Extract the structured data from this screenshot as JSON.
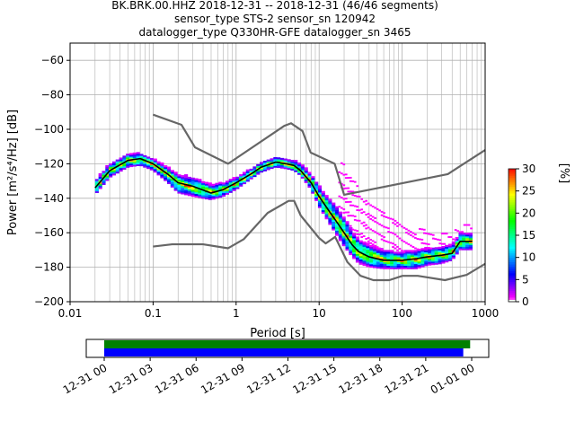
{
  "title_lines": [
    "BK.BRK.00.HHZ   2018-12-31 -- 2018-12-31  (46/46 segments)",
    "sensor_type STS-2 sensor_sn 120942",
    "datalogger_type Q330HR-GFE datalogger_sn 3465"
  ],
  "colorbar": {
    "label": "[%]",
    "ticks": [
      "0",
      "5",
      "10",
      "15",
      "20",
      "25",
      "30"
    ],
    "range": [
      0,
      30
    ],
    "colormap": "pqlx"
  },
  "timeline": {
    "tick_labels": [
      "12-31 00",
      "12-31 03",
      "12-31 06",
      "12-31 09",
      "12-31 12",
      "12-31 15",
      "12-31 18",
      "12-31 21",
      "01-01 00"
    ],
    "bars": [
      {
        "color": "#008000",
        "start_hour": 0.0,
        "end_hour": 23.9
      },
      {
        "color": "#0000ff",
        "start_hour": 0.0,
        "end_hour": 23.45
      }
    ]
  },
  "chart_data": {
    "type": "heatmap",
    "xlabel": "Period [s]",
    "ylabel": "Power [m²/s⁴/Hz] [dB]",
    "xscale": "log",
    "xlim": [
      0.01,
      1000
    ],
    "ylim": [
      -200,
      -50
    ],
    "grid": true,
    "x_tick_labels": [
      "0.01",
      "0.1",
      "1",
      "10",
      "100",
      "1000"
    ],
    "y_tick_labels": [
      "−200",
      "−180",
      "−160",
      "−140",
      "−120",
      "−100",
      "−80",
      "−60"
    ],
    "series": [
      {
        "role": "noise-model-upper",
        "color": "#666666",
        "x": [
          0.1,
          0.22,
          0.32,
          0.8,
          3.8,
          4.6,
          6.3,
          7.9,
          15.4,
          20,
          354.8,
          1000
        ],
        "y": [
          -91.5,
          -97.4,
          -110.5,
          -120,
          -98,
          -96.5,
          -101,
          -113.5,
          -120,
          -138,
          -126,
          -112
        ]
      },
      {
        "role": "noise-model-lower",
        "color": "#666666",
        "x": [
          0.1,
          0.17,
          0.4,
          0.8,
          1.24,
          2.4,
          4.3,
          5.0,
          6.0,
          10,
          12,
          15.6,
          21.9,
          31.6,
          45,
          70,
          101,
          154,
          328,
          600,
          1000
        ],
        "y": [
          -168,
          -166.7,
          -166.7,
          -169,
          -163.7,
          -148.5,
          -141.5,
          -141.5,
          -150,
          -163.1,
          -166.2,
          -162.4,
          -177,
          -185,
          -187.5,
          -187.5,
          -185,
          -185,
          -187.5,
          -184.4,
          -178
        ]
      },
      {
        "role": "mode",
        "color": "#000000",
        "x": [
          0.02,
          0.03,
          0.05,
          0.07,
          0.1,
          0.15,
          0.2,
          0.3,
          0.5,
          0.7,
          1,
          1.5,
          2,
          3,
          4,
          5,
          6,
          8,
          10,
          13,
          17,
          20,
          25,
          30,
          40,
          60,
          80,
          100,
          150,
          200,
          300,
          400,
          500,
          700
        ],
        "y": [
          -134,
          -124,
          -118,
          -117,
          -120,
          -126,
          -131,
          -133,
          -137,
          -135,
          -131,
          -126,
          -122,
          -119,
          -120,
          -121,
          -124,
          -131,
          -139,
          -147,
          -155,
          -160,
          -167,
          -171,
          -174,
          -176,
          -176,
          -176,
          -175,
          -174,
          -173,
          -172,
          -165,
          -165
        ]
      }
    ],
    "density_band": {
      "x": [
        0.02,
        0.03,
        0.05,
        0.07,
        0.1,
        0.15,
        0.2,
        0.3,
        0.5,
        0.7,
        1,
        1.5,
        2,
        3,
        4,
        5,
        6,
        8,
        10,
        13,
        17,
        20,
        25,
        30,
        40,
        60,
        80,
        100,
        150,
        200,
        300,
        400,
        500,
        700
      ],
      "y_low": [
        -138,
        -128,
        -122,
        -121,
        -124,
        -131,
        -137,
        -139,
        -141,
        -139,
        -135,
        -129,
        -125,
        -122,
        -123,
        -124,
        -127,
        -135,
        -145,
        -154,
        -163,
        -168,
        -174,
        -178,
        -180,
        -181,
        -181,
        -181,
        -181,
        -179,
        -178,
        -176,
        -170,
        -170
      ],
      "y_high": [
        -130,
        -120,
        -114,
        -114,
        -117,
        -122,
        -126,
        -128,
        -132,
        -131,
        -128,
        -123,
        -119,
        -116,
        -117,
        -118,
        -120,
        -126,
        -133,
        -140,
        -146,
        -151,
        -159,
        -164,
        -167,
        -170,
        -171,
        -171,
        -170,
        -169,
        -168,
        -167,
        -160,
        -160
      ]
    },
    "outlier_band": {
      "x": [
        17,
        20,
        25,
        30,
        40,
        60,
        80,
        100,
        150,
        200,
        300,
        400,
        500,
        700
      ],
      "y": [
        -118,
        -120,
        -127,
        -134,
        -141,
        -146,
        -148,
        -152,
        -157,
        -158,
        -160,
        -160,
        -155,
        -155
      ]
    }
  }
}
